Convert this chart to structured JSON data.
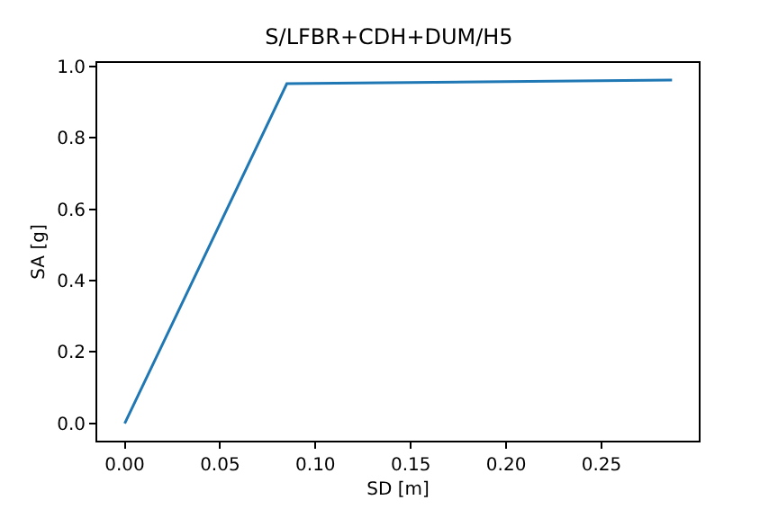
{
  "chart_data": {
    "type": "line",
    "title": "S/LFBR+CDH+DUM/H5",
    "xlabel": "SD [m]",
    "ylabel": "SA [g]",
    "x": [
      0,
      0.085,
      0.287
    ],
    "series": [
      {
        "color": "#1f77b4",
        "values": [
          0,
          0.951,
          0.961
        ]
      }
    ],
    "xlim": [
      -0.0144,
      0.301
    ],
    "ylim": [
      -0.048,
      1.009
    ],
    "xticks": [
      {
        "value": 0,
        "label": "0.00"
      },
      0.05,
      {
        "value": 0.1,
        "label": "0.10"
      },
      0.15,
      {
        "value": 0.2,
        "label": "0.20"
      },
      0.25
    ],
    "yticks": [
      {
        "value": 0,
        "label": "0.0"
      },
      0.2,
      0.4,
      0.6,
      0.8,
      {
        "value": 1,
        "label": "1.0"
      }
    ],
    "grid": false,
    "marker": "none",
    "line_style": "solid"
  }
}
